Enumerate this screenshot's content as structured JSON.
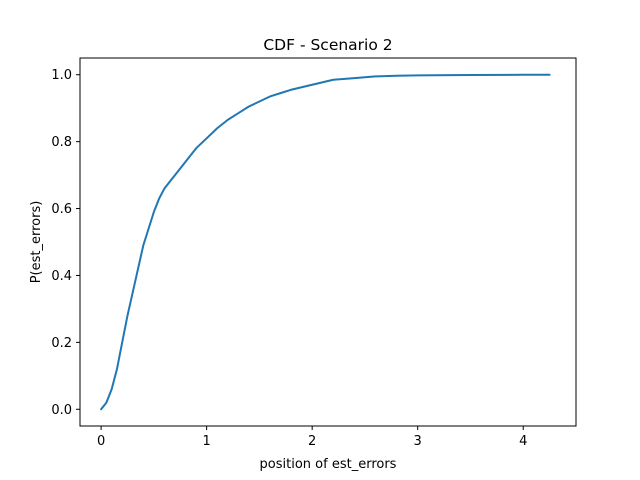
{
  "chart_data": {
    "type": "line",
    "title": "CDF - Scenario 2",
    "xlabel": "position of est_errors",
    "ylabel": "P(est_errors)",
    "xlim": [
      -0.2,
      4.5
    ],
    "ylim": [
      -0.05,
      1.05
    ],
    "xticks": [
      0,
      1,
      2,
      3,
      4
    ],
    "xtick_labels": [
      "0",
      "1",
      "2",
      "3",
      "4"
    ],
    "yticks": [
      0.0,
      0.2,
      0.4,
      0.6,
      0.8,
      1.0
    ],
    "ytick_labels": [
      "0.0",
      "0.2",
      "0.4",
      "0.6",
      "0.8",
      "1.0"
    ],
    "grid": false,
    "legend": "none",
    "line_color": "#1f77b4",
    "series": [
      {
        "x": [
          0.0,
          0.05,
          0.1,
          0.15,
          0.2,
          0.25,
          0.3,
          0.35,
          0.4,
          0.45,
          0.5,
          0.55,
          0.6,
          0.65,
          0.7,
          0.8,
          0.9,
          1.0,
          1.1,
          1.2,
          1.3,
          1.4,
          1.5,
          1.6,
          1.7,
          1.8,
          2.0,
          2.2,
          2.4,
          2.6,
          2.8,
          3.0,
          3.5,
          4.0,
          4.25
        ],
        "y": [
          0.0,
          0.02,
          0.06,
          0.12,
          0.2,
          0.28,
          0.35,
          0.42,
          0.49,
          0.54,
          0.59,
          0.63,
          0.66,
          0.68,
          0.7,
          0.74,
          0.78,
          0.81,
          0.84,
          0.865,
          0.885,
          0.905,
          0.92,
          0.935,
          0.945,
          0.955,
          0.97,
          0.985,
          0.99,
          0.995,
          0.997,
          0.998,
          0.999,
          1.0,
          1.0
        ]
      }
    ]
  }
}
